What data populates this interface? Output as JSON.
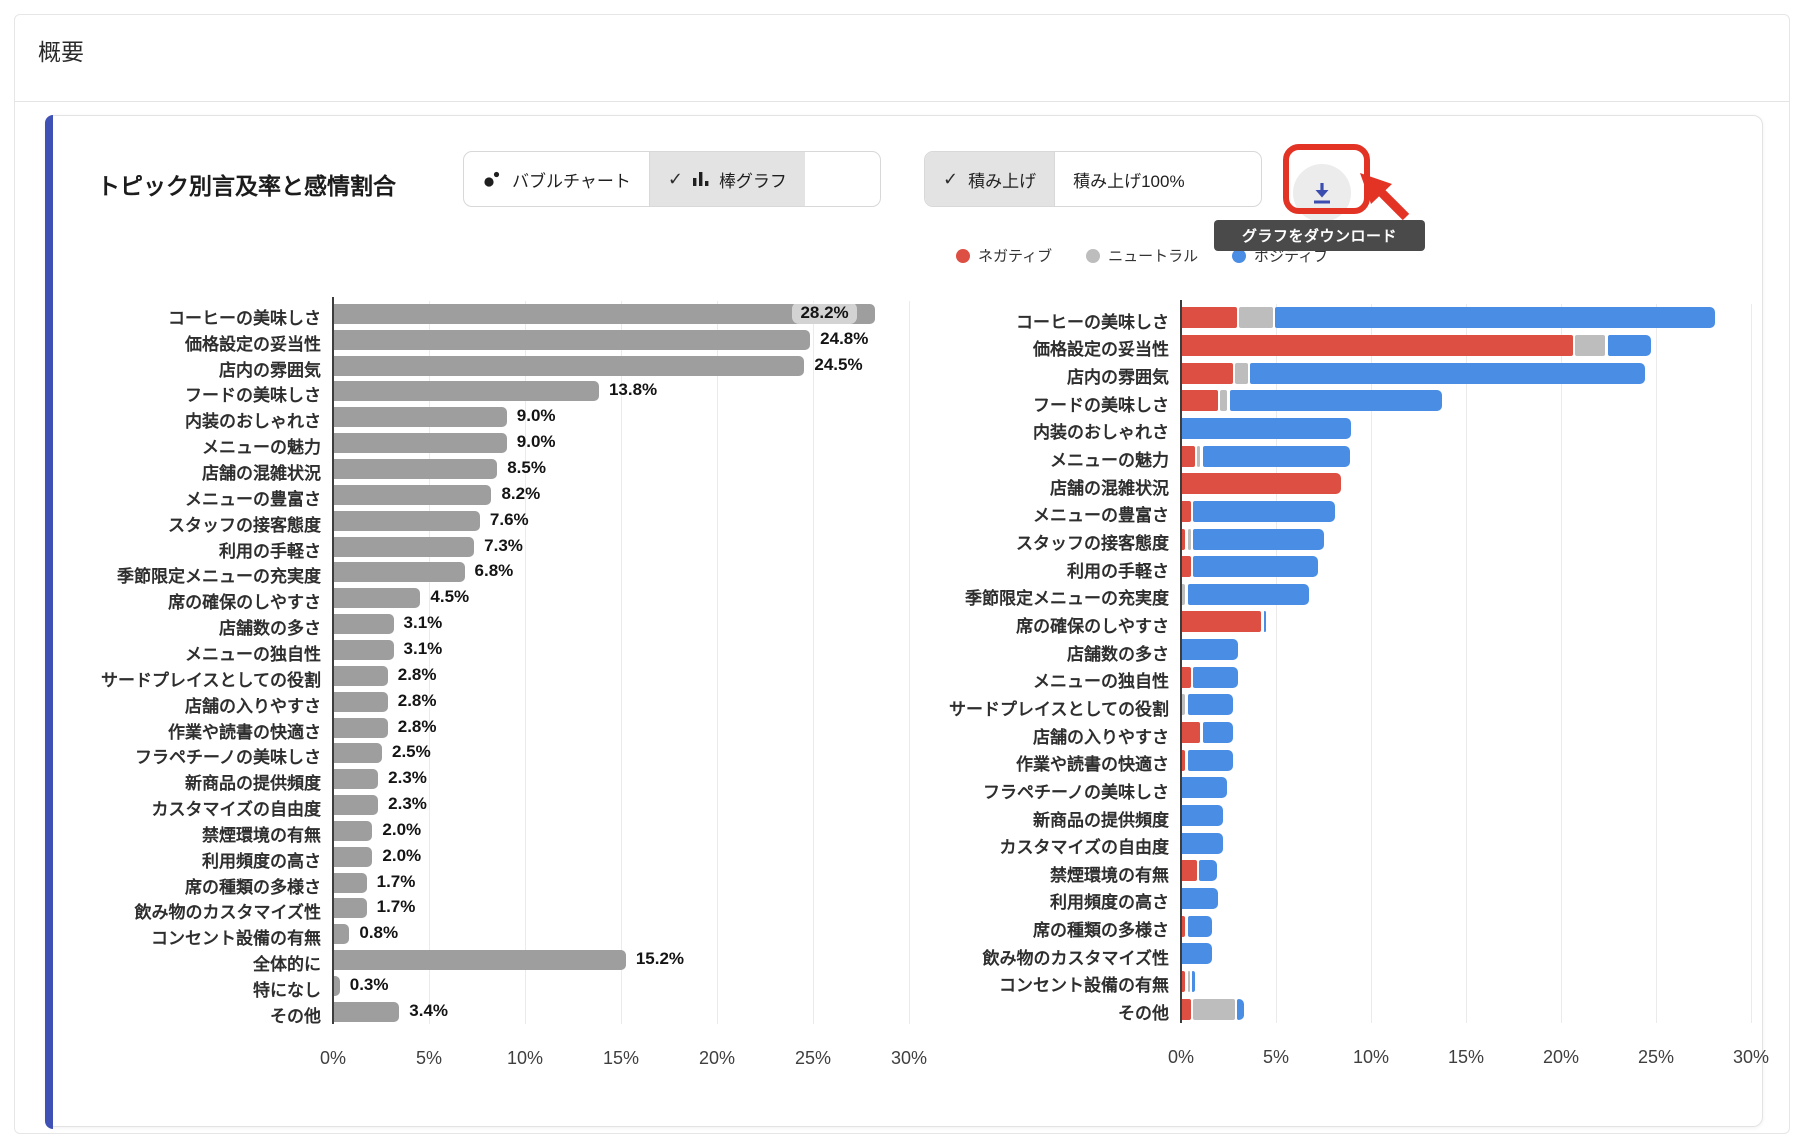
{
  "page": {
    "heading": "概要"
  },
  "panel": {
    "title": "トピック別言及率と感情割合",
    "chart_type_toggle": [
      {
        "label": "バブルチャート",
        "icon": "bubble-chart-icon",
        "selected": false
      },
      {
        "label": "棒グラフ",
        "icon": "bar-chart-icon",
        "selected": true
      }
    ],
    "stack_mode_toggle": [
      {
        "label": "積み上げ",
        "selected": true
      },
      {
        "label": "積み上げ100%",
        "selected": false
      }
    ],
    "icons": {
      "check": "✓"
    },
    "download_button": {
      "tooltip": "グラフをダウンロード"
    },
    "legend": [
      {
        "label": "ネガティブ",
        "color": "#dd4f43"
      },
      {
        "label": "ニュートラル",
        "color": "#bdbdbd"
      },
      {
        "label": "ポジティブ",
        "color": "#4a8de4"
      }
    ],
    "colors": {
      "mention_bar": "#9e9e9e",
      "negative": "#dd4f43",
      "neutral": "#bdbdbd",
      "positive": "#4a8de4",
      "accent": "#3f51b5",
      "annotation": "#e23325",
      "tooltip_bg": "#4a4a4a"
    }
  },
  "chart_data": [
    {
      "type": "bar",
      "orientation": "horizontal",
      "stacked": false,
      "bar_color": "#9e9e9e",
      "categories": [
        "コーヒーの美味しさ",
        "価格設定の妥当性",
        "店内の雰囲気",
        "フードの美味しさ",
        "内装のおしゃれさ",
        "メニューの魅力",
        "店舗の混雑状況",
        "メニューの豊富さ",
        "スタッフの接客態度",
        "利用の手軽さ",
        "季節限定メニューの充実度",
        "席の確保のしやすさ",
        "店舗数の多さ",
        "メニューの独自性",
        "サードプレイスとしての役割",
        "店舗の入りやすさ",
        "作業や読書の快適さ",
        "フラペチーノの美味しさ",
        "新商品の提供頻度",
        "カスタマイズの自由度",
        "禁煙環境の有無",
        "利用頻度の高さ",
        "席の種類の多様さ",
        "飲み物のカスタマイズ性",
        "コンセント設備の有無",
        "全体的に",
        "特になし",
        "その他"
      ],
      "values": [
        28.2,
        24.8,
        24.5,
        13.8,
        9.0,
        9.0,
        8.5,
        8.2,
        7.6,
        7.3,
        6.8,
        4.5,
        3.1,
        3.1,
        2.8,
        2.8,
        2.8,
        2.5,
        2.3,
        2.3,
        2.0,
        2.0,
        1.7,
        1.7,
        0.8,
        15.2,
        0.3,
        3.4
      ],
      "value_suffix": "%",
      "xlim": [
        0,
        30
      ],
      "xticks": [
        "0%",
        "5%",
        "10%",
        "15%",
        "20%",
        "25%",
        "30%"
      ],
      "grid": true,
      "xlabel": "",
      "ylabel": ""
    },
    {
      "type": "bar",
      "orientation": "horizontal",
      "stacked": true,
      "categories": [
        "コーヒーの美味しさ",
        "価格設定の妥当性",
        "店内の雰囲気",
        "フードの美味しさ",
        "内装のおしゃれさ",
        "メニューの魅力",
        "店舗の混雑状況",
        "メニューの豊富さ",
        "スタッフの接客態度",
        "利用の手軽さ",
        "季節限定メニューの充実度",
        "席の確保のしやすさ",
        "店舗数の多さ",
        "メニューの独自性",
        "サードプレイスとしての役割",
        "店舗の入りやすさ",
        "作業や読書の快適さ",
        "フラペチーノの美味しさ",
        "新商品の提供頻度",
        "カスタマイズの自由度",
        "禁煙環境の有無",
        "利用頻度の高さ",
        "席の種類の多様さ",
        "飲み物のカスタマイズ性",
        "コンセント設備の有無",
        "その他"
      ],
      "series": [
        {
          "name": "ネガティブ",
          "color": "#dd4f43",
          "values": [
            3.0,
            20.7,
            2.8,
            2.0,
            0,
            0.8,
            8.5,
            0.6,
            0.3,
            0.6,
            0,
            4.3,
            0,
            0.6,
            0,
            1.1,
            0.3,
            0,
            0,
            0,
            0.9,
            0,
            0.3,
            0,
            0.3,
            0.6
          ]
        },
        {
          "name": "ニュートラル",
          "color": "#bdbdbd",
          "values": [
            1.9,
            1.7,
            0.8,
            0.5,
            0,
            0.3,
            0,
            0,
            0.3,
            0,
            0.3,
            0,
            0,
            0,
            0.3,
            0,
            0,
            0,
            0,
            0,
            0,
            0,
            0,
            0,
            0.2,
            2.3
          ]
        },
        {
          "name": "ポジティブ",
          "color": "#4a8de4",
          "values": [
            23.3,
            2.4,
            20.9,
            11.3,
            9.0,
            7.9,
            0,
            7.6,
            7.0,
            6.7,
            6.5,
            0.2,
            3.1,
            2.5,
            2.5,
            1.7,
            2.5,
            2.5,
            2.3,
            2.3,
            1.1,
            2.0,
            1.4,
            1.7,
            0.3,
            0.5
          ]
        }
      ],
      "xlim": [
        0,
        30
      ],
      "xticks": [
        "0%",
        "5%",
        "10%",
        "15%",
        "20%",
        "25%",
        "30%"
      ],
      "grid": true,
      "legend_position": "top",
      "xlabel": "",
      "ylabel": ""
    }
  ]
}
